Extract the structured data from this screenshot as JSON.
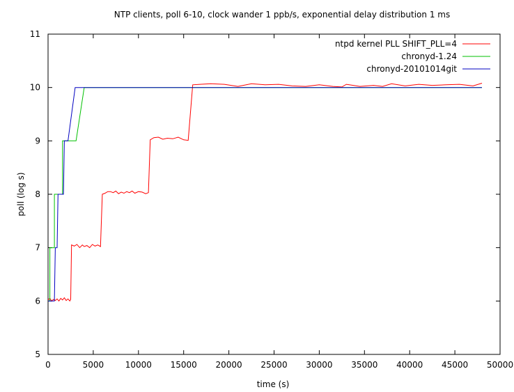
{
  "chart_data": {
    "type": "line",
    "title": "NTP clients, poll 6-10, clock wander 1 ppb/s, exponential delay distribution 1 ms",
    "xlabel": "time (s)",
    "ylabel": "poll (log s)",
    "xlim": [
      0,
      50000
    ],
    "ylim": [
      5,
      11
    ],
    "xticks": [
      0,
      5000,
      10000,
      15000,
      20000,
      25000,
      30000,
      35000,
      40000,
      45000,
      50000
    ],
    "yticks": [
      5,
      6,
      7,
      8,
      9,
      10,
      11
    ],
    "legend_position": "top-right",
    "grid": false,
    "series": [
      {
        "name": "ntpd kernel PLL SHIFT_PLL=4",
        "color": "#ff0000",
        "points": [
          [
            0,
            6.02
          ],
          [
            200,
            6.05
          ],
          [
            400,
            6.0
          ],
          [
            600,
            6.03
          ],
          [
            800,
            6.01
          ],
          [
            1000,
            6.04
          ],
          [
            1200,
            6.0
          ],
          [
            1400,
            6.05
          ],
          [
            1600,
            6.02
          ],
          [
            1800,
            6.06
          ],
          [
            2000,
            6.01
          ],
          [
            2200,
            6.04
          ],
          [
            2400,
            6.0
          ],
          [
            2500,
            6.03
          ],
          [
            2600,
            7.05
          ],
          [
            2900,
            7.03
          ],
          [
            3200,
            7.06
          ],
          [
            3500,
            7.0
          ],
          [
            3800,
            7.05
          ],
          [
            4000,
            7.02
          ],
          [
            4300,
            7.04
          ],
          [
            4600,
            7.0
          ],
          [
            4900,
            7.06
          ],
          [
            5200,
            7.03
          ],
          [
            5500,
            7.05
          ],
          [
            5800,
            7.02
          ],
          [
            6000,
            8.0
          ],
          [
            6300,
            8.02
          ],
          [
            6600,
            8.05
          ],
          [
            6900,
            8.05
          ],
          [
            7200,
            8.03
          ],
          [
            7500,
            8.06
          ],
          [
            7800,
            8.01
          ],
          [
            8100,
            8.04
          ],
          [
            8400,
            8.02
          ],
          [
            8700,
            8.05
          ],
          [
            9000,
            8.03
          ],
          [
            9300,
            8.06
          ],
          [
            9600,
            8.02
          ],
          [
            10000,
            8.05
          ],
          [
            10400,
            8.04
          ],
          [
            10800,
            8.01
          ],
          [
            11100,
            8.03
          ],
          [
            11300,
            9.02
          ],
          [
            11700,
            9.06
          ],
          [
            12200,
            9.07
          ],
          [
            12700,
            9.03
          ],
          [
            13200,
            9.05
          ],
          [
            13800,
            9.04
          ],
          [
            14400,
            9.07
          ],
          [
            15000,
            9.02
          ],
          [
            15500,
            9.01
          ],
          [
            16000,
            10.05
          ],
          [
            16800,
            10.06
          ],
          [
            18000,
            10.07
          ],
          [
            19500,
            10.06
          ],
          [
            21000,
            10.02
          ],
          [
            22500,
            10.07
          ],
          [
            24000,
            10.05
          ],
          [
            25500,
            10.06
          ],
          [
            27000,
            10.03
          ],
          [
            28500,
            10.02
          ],
          [
            30000,
            10.05
          ],
          [
            31500,
            10.02
          ],
          [
            32500,
            10.01
          ],
          [
            33000,
            10.06
          ],
          [
            34500,
            10.02
          ],
          [
            36000,
            10.04
          ],
          [
            37000,
            10.02
          ],
          [
            38000,
            10.07
          ],
          [
            39500,
            10.03
          ],
          [
            41000,
            10.06
          ],
          [
            42500,
            10.04
          ],
          [
            44000,
            10.05
          ],
          [
            45500,
            10.06
          ],
          [
            47000,
            10.03
          ],
          [
            48000,
            10.08
          ]
        ]
      },
      {
        "name": "chronyd-1.24",
        "color": "#00c000",
        "points": [
          [
            0,
            6
          ],
          [
            200,
            6
          ],
          [
            200,
            7
          ],
          [
            700,
            7
          ],
          [
            700,
            8
          ],
          [
            1600,
            8
          ],
          [
            1600,
            9
          ],
          [
            3100,
            9
          ],
          [
            4000,
            10
          ],
          [
            48000,
            10
          ]
        ]
      },
      {
        "name": "chronyd-20101014git",
        "color": "#0000c0",
        "points": [
          [
            0,
            6
          ],
          [
            700,
            6
          ],
          [
            800,
            7
          ],
          [
            1000,
            7
          ],
          [
            1100,
            8
          ],
          [
            1700,
            8
          ],
          [
            1800,
            9
          ],
          [
            2200,
            9
          ],
          [
            3000,
            10
          ],
          [
            48000,
            10
          ]
        ]
      }
    ]
  }
}
